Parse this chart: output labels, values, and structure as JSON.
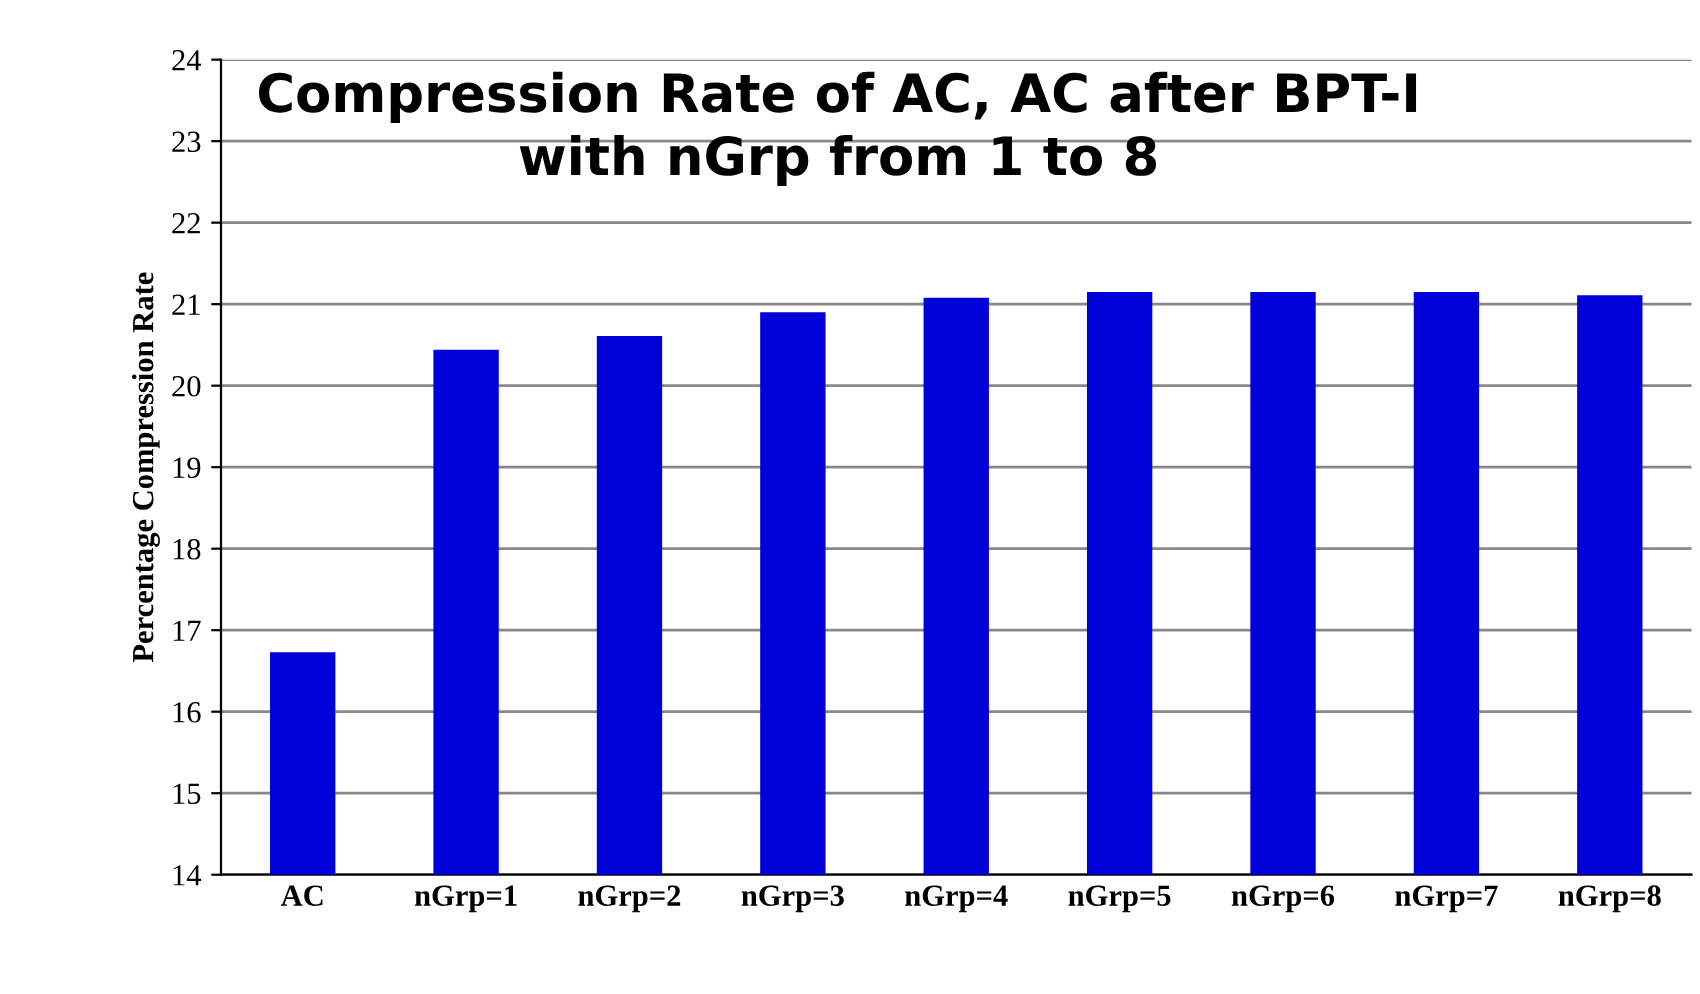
{
  "chart_data": {
    "type": "bar",
    "title": "Compression Rate of AC, AC after BPT-I\nwith nGrp from 1 to 8",
    "ylabel": "Percentage Compression Rate",
    "categories": [
      "AC",
      "nGrp=1",
      "nGrp=2",
      "nGrp=3",
      "nGrp=4",
      "nGrp=5",
      "nGrp=6",
      "nGrp=7",
      "nGrp=8"
    ],
    "values": [
      16.73,
      20.44,
      20.61,
      20.9,
      21.08,
      21.15,
      21.15,
      21.15,
      21.11
    ],
    "color": "#0000d8",
    "ylim": [
      14,
      24
    ],
    "yticks": [
      14,
      15,
      16,
      17,
      18,
      19,
      20,
      21,
      22,
      23,
      24
    ],
    "grid": "y",
    "legend": false
  }
}
